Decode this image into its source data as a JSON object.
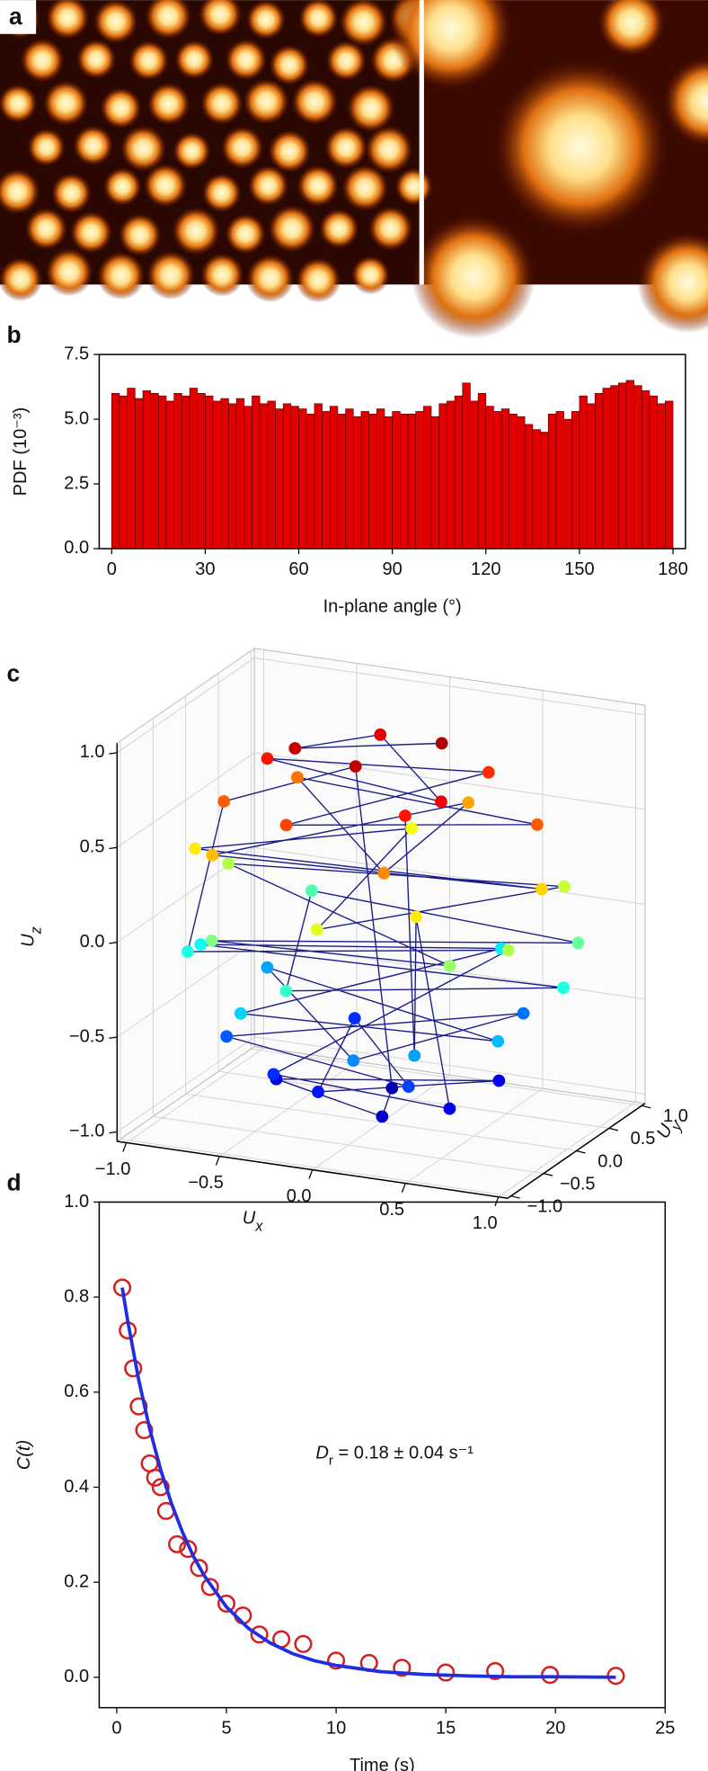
{
  "image_panel": {
    "label": "a"
  },
  "chart_data": [
    {
      "type": "histogram",
      "label": "b",
      "x_label": "In-plane angle (°)",
      "y_label": "PDF (10⁻³)",
      "bins": [
        0,
        2.5,
        5,
        7.5,
        10,
        12.5,
        15,
        17.5,
        20,
        22.5,
        25,
        27.5,
        30,
        32.5,
        35,
        37.5,
        40,
        42.5,
        45,
        47.5,
        50,
        52.5,
        55,
        57.5,
        60,
        62.5,
        65,
        67.5,
        70,
        72.5,
        75,
        77.5,
        80,
        82.5,
        85,
        87.5,
        90,
        92.5,
        95,
        97.5,
        100,
        102.5,
        105,
        107.5,
        110,
        112.5,
        115,
        117.5,
        120,
        122.5,
        125,
        127.5,
        130,
        132.5,
        135,
        137.5,
        140,
        142.5,
        145,
        147.5,
        150,
        152.5,
        155,
        157.5,
        160,
        162.5,
        165,
        167.5,
        170,
        172.5,
        175,
        177.5,
        180
      ],
      "values": [
        6.0,
        5.9,
        6.2,
        5.8,
        6.1,
        6.0,
        5.9,
        5.7,
        6.0,
        5.9,
        6.2,
        6.0,
        5.9,
        5.7,
        5.8,
        5.6,
        5.8,
        5.5,
        5.9,
        5.6,
        5.7,
        5.4,
        5.6,
        5.5,
        5.4,
        5.2,
        5.6,
        5.3,
        5.5,
        5.2,
        5.4,
        5.1,
        5.3,
        5.2,
        5.4,
        5.1,
        5.3,
        5.2,
        5.2,
        5.3,
        5.5,
        5.1,
        5.6,
        5.7,
        5.9,
        6.4,
        5.7,
        6.0,
        5.5,
        5.3,
        5.4,
        5.2,
        5.1,
        4.8,
        4.6,
        4.5,
        5.2,
        5.3,
        5.0,
        5.3,
        5.9,
        5.6,
        6.0,
        6.2,
        6.3,
        6.4,
        6.5,
        6.3,
        6.1,
        5.9,
        5.6,
        5.7
      ],
      "color": "#e00000",
      "xlim": [
        -4,
        184
      ],
      "ylim": [
        0,
        7.5
      ],
      "xticks": [
        0,
        30,
        60,
        90,
        120,
        150,
        180
      ],
      "yticks": [
        {
          "value": 0,
          "label": "0.0"
        },
        2.5,
        {
          "value": 5,
          "label": "5.0"
        },
        7.5
      ]
    },
    {
      "type": "scatter3d",
      "label": "c",
      "x_label": {
        "text": "U",
        "subscript": "x"
      },
      "y_label": {
        "text": "U",
        "subscript": "y"
      },
      "z_label": {
        "text": "U",
        "subscript": "z"
      },
      "colormap": "jet",
      "line_color": "#1c1c8a",
      "xlim": [
        -1.05,
        1.05
      ],
      "ylim": [
        -1.05,
        1.05
      ],
      "zlim": [
        -1.05,
        1.05
      ],
      "xticks": [
        {
          "value": -1,
          "label": "−1.0"
        },
        {
          "value": -0.5,
          "label": "−0.5"
        },
        {
          "value": 0,
          "label": "0.0"
        },
        0.5,
        {
          "value": 1,
          "label": "1.0"
        }
      ],
      "yticks": [
        {
          "value": -1,
          "label": "−1.0"
        },
        {
          "value": -0.5,
          "label": "−0.5"
        },
        {
          "value": 0,
          "label": "0.0"
        },
        0.5,
        {
          "value": 1,
          "label": "1.0"
        }
      ],
      "zticks": [
        {
          "value": -1,
          "label": "−1.0"
        },
        {
          "value": -0.5,
          "label": "−0.5"
        },
        {
          "value": 0,
          "label": "0.0"
        },
        0.5,
        {
          "value": 1,
          "label": "1.0"
        }
      ],
      "x": [
        0.27,
        -0.41,
        -0.18,
        0.46,
        -0.65,
        0.36,
        -0.26,
        0.79,
        -0.64,
        0.3,
        0.16,
        -0.7,
        0.92,
        -0.94,
        -0.17,
        0.0,
        0.76,
        -0.94,
        0.64,
        -0.64,
        0.94,
        -0.64,
        -0.17,
        0.98,
        -0.97,
        0.33,
        -0.47,
        0.79,
        -0.77,
        0.15,
        0.54,
        -0.69,
        0.38,
        -0.36,
        -0.11,
        0.56,
        -0.5,
        0.15,
        -0.05,
        0.0,
        -0.75,
        -0.92,
        0.86,
        -0.36,
        0.46,
        0.48,
        0.45,
        0.33
      ],
      "y": [
        0.16,
        -0.15,
        0.5,
        -0.39,
        0.11,
        0.62,
        -0.71,
        0.14,
        0.54,
        -0.81,
        0.88,
        -0.59,
        -0.16,
        -0.17,
        0.95,
        -0.98,
        0.64,
        0.34,
        -0.77,
        -0.77,
        0.34,
        0.76,
        -0.97,
        0.0,
        0.0,
        0.9,
        -0.81,
        -0.46,
        0.45,
        -0.85,
        0.64,
        -0.4,
        -0.66,
        0.62,
        -0.65,
        0.21,
        -0.18,
        -0.41,
        0.31,
        -0.39,
        -0.27,
        -0.34,
        -0.5,
        -0.62,
        -0.26,
        -0.83,
        -0.77,
        -0.57
      ],
      "z": [
        0.95,
        0.9,
        0.85,
        0.8,
        0.75,
        0.7,
        0.65,
        0.6,
        0.55,
        0.5,
        0.45,
        0.4,
        0.35,
        0.3,
        0.25,
        0.2,
        0.15,
        0.1,
        0.05,
        0.0,
        -0.05,
        -0.1,
        -0.15,
        -0.2,
        -0.25,
        -0.3,
        -0.35,
        -0.4,
        -0.45,
        -0.5,
        -0.55,
        -0.6,
        -0.65,
        -0.7,
        -0.75,
        -0.8,
        -0.85,
        -0.9,
        -0.95,
        0.92,
        0.6,
        -0.2,
        0.1,
        -0.7,
        -0.85,
        0.3,
        -0.45,
        0.75
      ]
    },
    {
      "type": "scatter",
      "label": "d",
      "x_label": "Time (s)",
      "y_label": "C(t)",
      "annotation": {
        "text": "D",
        "subscript": "r",
        "rest": " = 0.18 ± 0.04 s⁻¹"
      },
      "xlim": [
        -0.8,
        25
      ],
      "ylim": [
        -0.064,
        1.0
      ],
      "xticks": [
        0,
        5,
        10,
        15,
        20,
        25
      ],
      "yticks": [
        {
          "value": 0,
          "label": "0.0"
        },
        0.2,
        0.4,
        0.6,
        0.8,
        {
          "value": 1,
          "label": "1.0"
        }
      ],
      "series": [
        {
          "style": "markers",
          "color": "#d42020",
          "x": [
            0.25,
            0.5,
            0.75,
            1.0,
            1.25,
            1.5,
            1.75,
            2.0,
            2.25,
            2.75,
            3.25,
            3.75,
            4.25,
            5.0,
            5.75,
            6.5,
            7.5,
            8.5,
            10.0,
            11.5,
            13.0,
            15.0,
            17.25,
            19.75,
            22.75
          ],
          "values": [
            0.82,
            0.73,
            0.65,
            0.57,
            0.52,
            0.45,
            0.42,
            0.4,
            0.35,
            0.28,
            0.27,
            0.23,
            0.19,
            0.155,
            0.13,
            0.09,
            0.08,
            0.07,
            0.035,
            0.03,
            0.02,
            0.01,
            0.013,
            0.005,
            0.003
          ]
        },
        {
          "style": "line",
          "color": "#1f2fe0",
          "x": [
            0.25,
            0.5,
            1,
            1.5,
            2,
            2.5,
            3,
            3.5,
            4,
            5,
            6,
            7,
            8,
            9,
            10,
            12,
            14,
            16,
            18,
            20,
            22.75
          ],
          "values": [
            0.82,
            0.75,
            0.626,
            0.523,
            0.437,
            0.365,
            0.305,
            0.254,
            0.213,
            0.148,
            0.103,
            0.072,
            0.05,
            0.035,
            0.025,
            0.012,
            0.006,
            0.003,
            0.001,
            0.001,
            0
          ]
        }
      ]
    }
  ]
}
